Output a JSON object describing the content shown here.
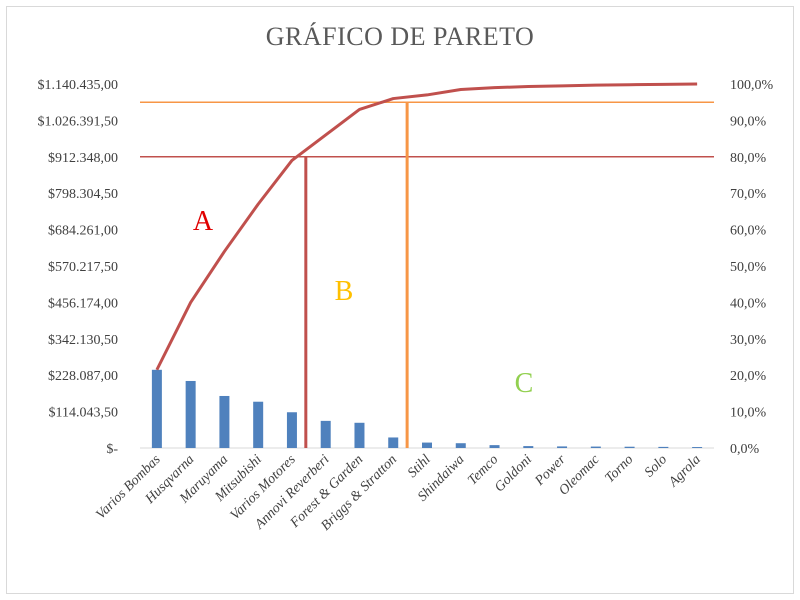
{
  "chart_data": {
    "type": "bar",
    "title": "GRÁFICO DE PARETO",
    "categories": [
      "Varios Bombas",
      "Husqvarna",
      "Maruyama",
      "Mitsubishi",
      "Varios Motores",
      "Annovi Reverberi",
      "Forest & Garden",
      "Briggs & Stratton",
      "Stihl",
      "Shindaiwa",
      "Temco",
      "Goldoni",
      "Power",
      "Oleomac",
      "Torno",
      "Solo",
      "Agrola"
    ],
    "series": [
      {
        "type": "bar",
        "color": "#4f81bd",
        "values": [
          245000,
          210000,
          163000,
          145000,
          112000,
          85000,
          79000,
          33000,
          17000,
          15000,
          9000,
          6000,
          5000,
          4500,
          4000,
          3500,
          3000
        ]
      },
      {
        "type": "line",
        "axis": "right",
        "color": "#c0504d",
        "values": [
          21.5,
          40.0,
          54.0,
          67.0,
          79.0,
          86.0,
          93.0,
          96.0,
          97.0,
          98.5,
          99.0,
          99.3,
          99.5,
          99.7,
          99.8,
          99.9,
          100.0
        ]
      }
    ],
    "y_left": {
      "ylim": [
        0,
        1140435
      ],
      "ticks": [
        "$1.140.435,00",
        "$1.026.391,50",
        "$912.348,00",
        "$798.304,50",
        "$684.261,00",
        "$570.217,50",
        "$456.174,00",
        "$342.130,50",
        "$228.087,00",
        "$114.043,50",
        "$-"
      ]
    },
    "y_right": {
      "ylim": [
        0,
        100
      ],
      "ticks": [
        "100,0%",
        "90,0%",
        "80,0%",
        "70,0%",
        "60,0%",
        "50,0%",
        "40,0%",
        "30,0%",
        "20,0%",
        "10,0%",
        "0,0%"
      ]
    },
    "reference_lines": [
      {
        "value_percent": 95,
        "color": "#f79646"
      },
      {
        "value_percent": 80,
        "color": "#c0504d"
      }
    ],
    "cutoff_lines": [
      {
        "after_category": "Varios Motores",
        "percent": 80,
        "color": "#c0504d"
      },
      {
        "after_category": "Briggs & Stratton",
        "percent": 95,
        "color": "#f79646"
      }
    ],
    "regions": [
      {
        "label": "A",
        "color": "#e00000"
      },
      {
        "label": "B",
        "color": "#ffc000"
      },
      {
        "label": "C",
        "color": "#92d050"
      }
    ],
    "grid": false,
    "legend": "none"
  }
}
